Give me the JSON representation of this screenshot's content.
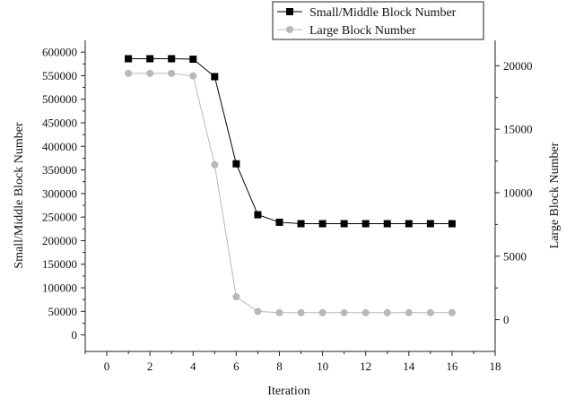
{
  "chart_data": {
    "type": "line",
    "title": "",
    "xlabel": "Iteration",
    "ylabel_left": "Small/Middle Block Number",
    "ylabel_right": "Large Block Number",
    "xlim": [
      -1,
      18
    ],
    "ylim_left": [
      -35000,
      625000
    ],
    "ylim_right": [
      -2500,
      22000
    ],
    "x_ticks": [
      0,
      2,
      4,
      6,
      8,
      10,
      12,
      14,
      16,
      18
    ],
    "y_left_ticks": [
      0,
      50000,
      100000,
      150000,
      200000,
      250000,
      300000,
      350000,
      400000,
      450000,
      500000,
      550000,
      600000
    ],
    "y_right_ticks": [
      0,
      5000,
      10000,
      15000,
      20000
    ],
    "grid": false,
    "legend_position": "top-right",
    "series": [
      {
        "name": "Small/Middle Block Number",
        "axis": "left",
        "marker": "square",
        "color": "#000000",
        "x": [
          1,
          2,
          3,
          4,
          5,
          6,
          7,
          8,
          9,
          10,
          11,
          12,
          13,
          14,
          15,
          16
        ],
        "values": [
          586000,
          586000,
          586000,
          585000,
          548000,
          363000,
          255000,
          239000,
          236000,
          236000,
          236000,
          236000,
          236000,
          236000,
          236000,
          236000
        ]
      },
      {
        "name": "Large Block Number",
        "axis": "right",
        "marker": "circle",
        "color": "#b8b8b8",
        "x": [
          1,
          2,
          3,
          4,
          5,
          6,
          7,
          8,
          9,
          10,
          11,
          12,
          13,
          14,
          15,
          16
        ],
        "values": [
          19400,
          19400,
          19400,
          19200,
          12200,
          1800,
          650,
          550,
          550,
          550,
          550,
          550,
          550,
          550,
          550,
          550
        ]
      }
    ]
  }
}
